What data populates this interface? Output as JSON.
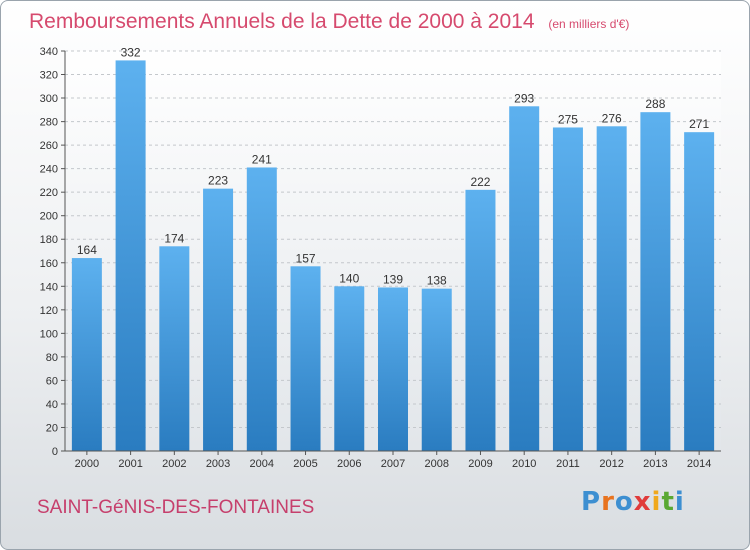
{
  "header": {
    "title": "Remboursements Annuels de la Dette de 2000 à 2014",
    "unit_note": "(en milliers d'€)"
  },
  "footer": {
    "town": "SAINT-GéNIS-DES-FONTAINES",
    "logo_letters": [
      "P",
      "r",
      "o",
      "x",
      "i",
      "t",
      "i"
    ],
    "logo_colors": [
      "#3d8fd1",
      "#e8731f",
      "#3d8fd1",
      "#e03b3b",
      "#f0a81b",
      "#5aa832",
      "#3d8fd1"
    ]
  },
  "chart_data": {
    "type": "bar",
    "title": "Remboursements Annuels de la Dette de 2000 à 2014",
    "categories": [
      "2000",
      "2001",
      "2002",
      "2003",
      "2004",
      "2005",
      "2006",
      "2007",
      "2008",
      "2009",
      "2010",
      "2011",
      "2012",
      "2013",
      "2014"
    ],
    "values": [
      164,
      332,
      174,
      223,
      241,
      157,
      140,
      139,
      138,
      222,
      293,
      275,
      276,
      288,
      271
    ],
    "ylim": [
      0,
      340
    ],
    "yticks": [
      0,
      20,
      40,
      60,
      80,
      100,
      120,
      140,
      160,
      180,
      200,
      220,
      240,
      260,
      280,
      300,
      320,
      340
    ],
    "grid": true,
    "bar_color": "#3d92d8"
  }
}
